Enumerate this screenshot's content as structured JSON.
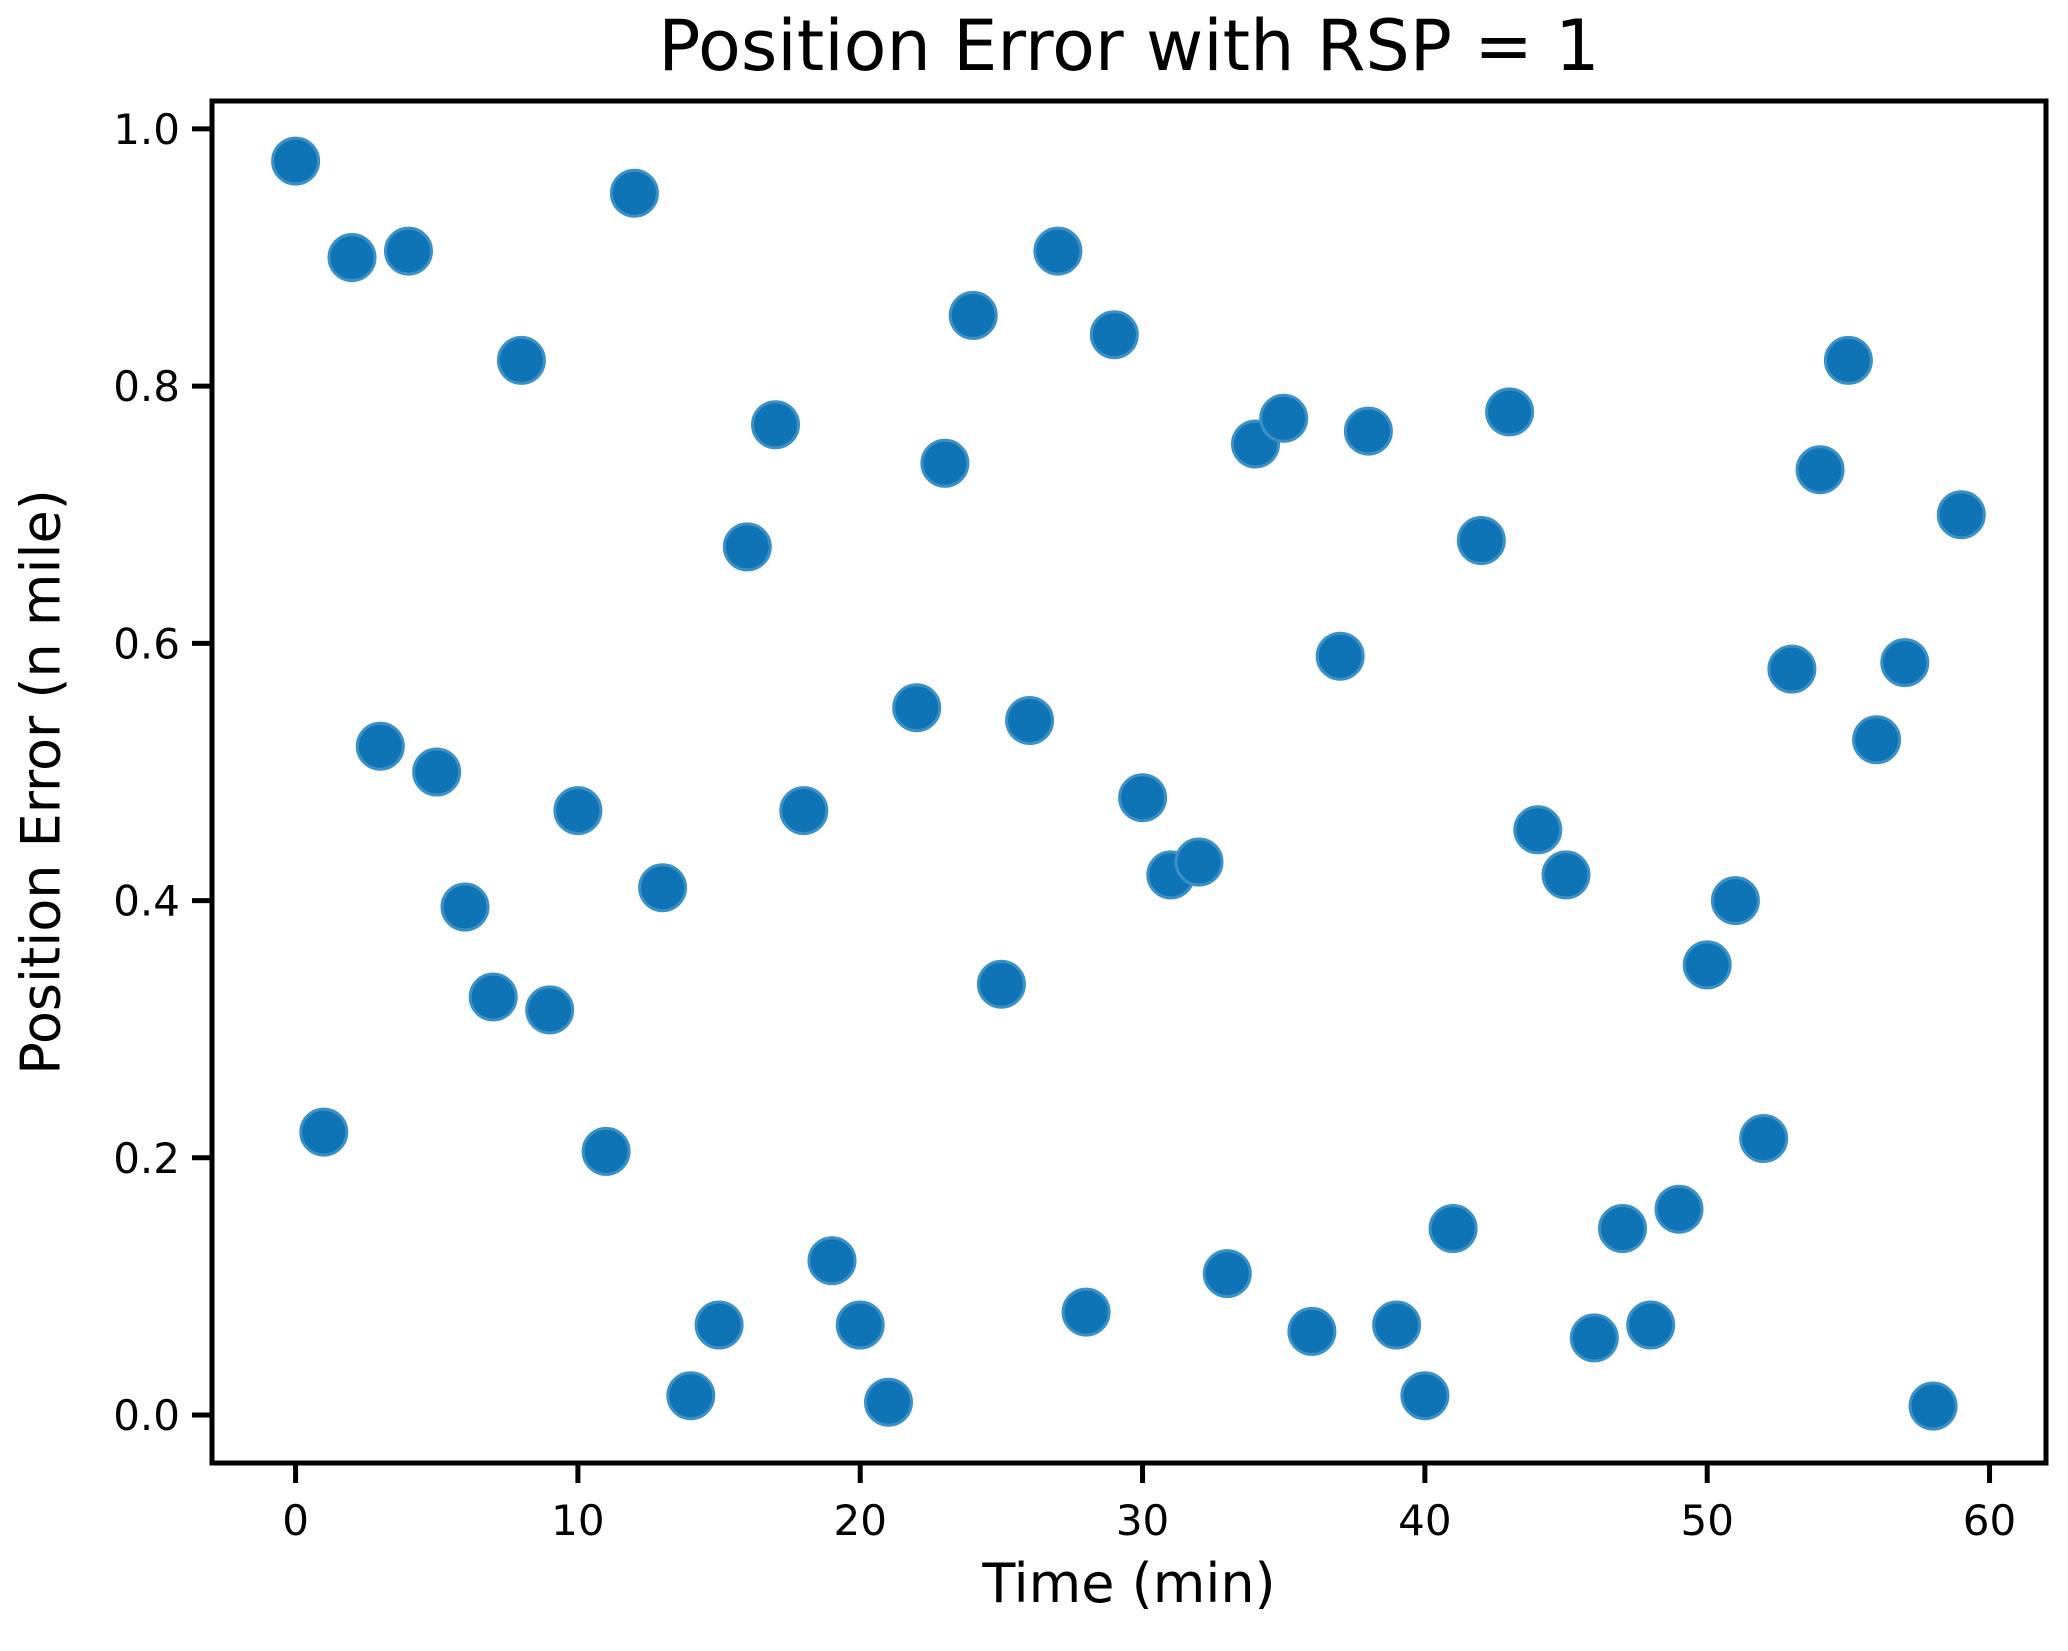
{
  "figure": {
    "background_color": "#ffffff",
    "text_color": "#000000",
    "spine_color": "#000000"
  },
  "chart_data": {
    "type": "scatter",
    "title": "Position Error with RSP = 1",
    "xlabel": "Time (min)",
    "ylabel": "Position Error (n mile)",
    "x": [
      0,
      1,
      2,
      3,
      4,
      5,
      6,
      7,
      8,
      9,
      10,
      11,
      12,
      13,
      14,
      15,
      16,
      17,
      18,
      19,
      20,
      21,
      22,
      23,
      24,
      25,
      26,
      27,
      28,
      29,
      30,
      31,
      32,
      33,
      34,
      35,
      36,
      37,
      38,
      39,
      40,
      41,
      42,
      43,
      44,
      45,
      46,
      47,
      48,
      49,
      50,
      51,
      52,
      53,
      54,
      55,
      56,
      57,
      58,
      59
    ],
    "y": [
      0.975,
      0.22,
      0.9,
      0.52,
      0.905,
      0.5,
      0.395,
      0.325,
      0.82,
      0.315,
      0.47,
      0.205,
      0.95,
      0.41,
      0.015,
      0.07,
      0.675,
      0.77,
      0.47,
      0.12,
      0.07,
      0.01,
      0.55,
      0.74,
      0.855,
      0.335,
      0.54,
      0.905,
      0.08,
      0.84,
      0.48,
      0.42,
      0.43,
      0.11,
      0.755,
      0.775,
      0.065,
      0.59,
      0.765,
      0.07,
      0.015,
      0.145,
      0.68,
      0.78,
      0.455,
      0.42,
      0.06,
      0.145,
      0.07,
      0.16,
      0.35,
      0.4,
      0.215,
      0.58,
      0.735,
      0.82,
      0.525,
      0.585,
      0.007,
      0.7
    ],
    "xlim": [
      -2.96,
      62.0
    ],
    "ylim": [
      -0.0373,
      1.0217
    ],
    "xticks": [
      0,
      10,
      20,
      30,
      40,
      50,
      60
    ],
    "xtick_labels": [
      "0",
      "10",
      "20",
      "30",
      "40",
      "50",
      "60"
    ],
    "yticks": [
      0.0,
      0.2,
      0.4,
      0.6,
      0.8,
      1.0
    ],
    "ytick_labels": [
      "0.0",
      "0.2",
      "0.4",
      "0.6",
      "0.8",
      "1.0"
    ],
    "grid": false,
    "legend": null,
    "marker": {
      "shape": "circle",
      "color": "#0f74b5",
      "edge_color": "#3b90c6",
      "radius_px": 23
    }
  }
}
